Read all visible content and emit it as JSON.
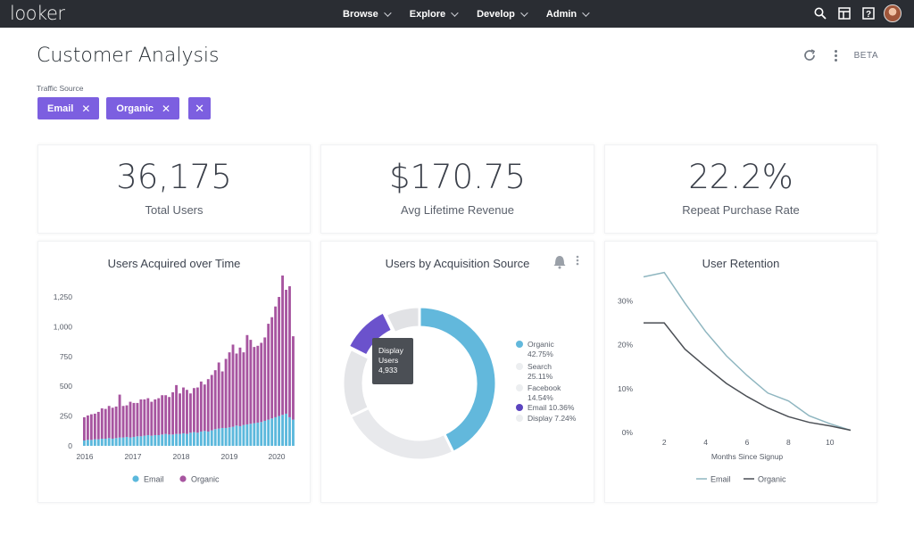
{
  "app": {
    "logo_text": "looker",
    "nav": [
      {
        "label": "Browse"
      },
      {
        "label": "Explore"
      },
      {
        "label": "Develop"
      },
      {
        "label": "Admin"
      }
    ],
    "icons": [
      "search-icon",
      "dashboard-icon",
      "help-icon",
      "avatar"
    ]
  },
  "dashboard": {
    "title": "Customer Analysis",
    "beta_label": "BETA",
    "filter": {
      "label": "Traffic Source",
      "chips": [
        {
          "label": "Email",
          "remove": "✕"
        },
        {
          "label": "Organic",
          "remove": "✕"
        }
      ],
      "clear": "✕"
    }
  },
  "kpis": [
    {
      "value": "36,175",
      "label": "Total Users"
    },
    {
      "value": "$170.75",
      "label": "Avg Lifetime Revenue"
    },
    {
      "value": "22.2%",
      "label": "Repeat Purchase Rate"
    }
  ],
  "colors": {
    "accent": "#7c5fe0",
    "email": "#5bb8dc",
    "organic": "#a755a0",
    "topbar": "#2a2d33"
  },
  "tiles": {
    "users_acquired": {
      "title": "Users Acquired over Time"
    },
    "acquisition_source": {
      "title": "Users by Acquisition Source"
    },
    "retention": {
      "title": "User Retention"
    }
  },
  "chart_data": [
    {
      "type": "bar",
      "title": "Users Acquired over Time",
      "stacked": true,
      "ylim": [
        0,
        1400
      ],
      "yticks": [
        0,
        250,
        500,
        750,
        "1,000",
        "1,250"
      ],
      "xticks": [
        "2016",
        "2017",
        "2018",
        "2019",
        "2020"
      ],
      "legend": [
        "Email",
        "Organic"
      ],
      "series": [
        {
          "name": "Email",
          "color": "#5bb8dc",
          "values": [
            45,
            50,
            50,
            55,
            55,
            60,
            60,
            65,
            60,
            65,
            70,
            70,
            75,
            70,
            75,
            80,
            80,
            85,
            90,
            85,
            90,
            90,
            95,
            100,
            95,
            95,
            100,
            100,
            105,
            100,
            110,
            115,
            110,
            120,
            125,
            120,
            130,
            140,
            145,
            150,
            150,
            155,
            160,
            170,
            165,
            175,
            180,
            185,
            190,
            195,
            200,
            210,
            220,
            230,
            240,
            250,
            260,
            270,
            240,
            220
          ]
        },
        {
          "name": "Organic",
          "color": "#a755a0",
          "values": [
            195,
            205,
            215,
            215,
            230,
            255,
            250,
            270,
            260,
            265,
            360,
            265,
            265,
            300,
            285,
            280,
            310,
            305,
            310,
            285,
            300,
            310,
            330,
            325,
            315,
            355,
            410,
            340,
            385,
            370,
            330,
            370,
            380,
            420,
            390,
            440,
            465,
            495,
            555,
            475,
            580,
            630,
            690,
            605,
            660,
            610,
            750,
            705,
            640,
            645,
            665,
            700,
            805,
            850,
            930,
            1000,
            1170,
            1040,
            1100,
            700
          ]
        }
      ]
    },
    {
      "type": "pie",
      "title": "Users by Acquisition Source",
      "donut": true,
      "slices": [
        {
          "name": "Organic",
          "percent": 42.75,
          "color": "#62b8dc"
        },
        {
          "name": "Search",
          "percent": 25.11,
          "color": "#e8e9ec"
        },
        {
          "name": "Facebook",
          "percent": 14.54,
          "color": "#e4e5e8"
        },
        {
          "name": "Email",
          "percent": 10.36,
          "color": "#6b52cc"
        },
        {
          "name": "Display",
          "percent": 7.24,
          "color": "#e1e2e5"
        }
      ],
      "legend": [
        {
          "line1": "Organic",
          "line2": "42.75%",
          "color": "#62b8dc"
        },
        {
          "line1": "Search",
          "line2": "25.11%",
          "color": "#eceef0"
        },
        {
          "line1": "Facebook",
          "line2": "14.54%",
          "color": "#eceef0"
        },
        {
          "line1": "Email 10.36%",
          "line2": "",
          "color": "#5b44bf"
        },
        {
          "line1": "Display 7.24%",
          "line2": "",
          "color": "#eceef0"
        }
      ],
      "tooltip": {
        "line1": "Display",
        "line2": "Users",
        "line3": "4,933"
      }
    },
    {
      "type": "line",
      "title": "User Retention",
      "xlabel": "Months Since Signup",
      "xlim": [
        1,
        11
      ],
      "ylim": [
        0,
        35
      ],
      "xticks": [
        "2",
        "4",
        "6",
        "8",
        "10"
      ],
      "yticks": [
        "0%",
        "10%",
        "20%",
        "30%"
      ],
      "legend": [
        "Email",
        "Organic"
      ],
      "x": [
        1,
        2,
        3,
        4,
        5,
        6,
        7,
        8,
        9,
        10,
        11
      ],
      "series": [
        {
          "name": "Email",
          "color": "#8fb6c0",
          "values": [
            35.5,
            36.5,
            29.5,
            23,
            17.5,
            13,
            9,
            7.2,
            3.8,
            2,
            0.5
          ]
        },
        {
          "name": "Organic",
          "color": "#4b4f55",
          "values": [
            25,
            25,
            19,
            15,
            11.2,
            8.2,
            5.6,
            3.6,
            2.3,
            1.5,
            0.5
          ]
        }
      ]
    }
  ]
}
